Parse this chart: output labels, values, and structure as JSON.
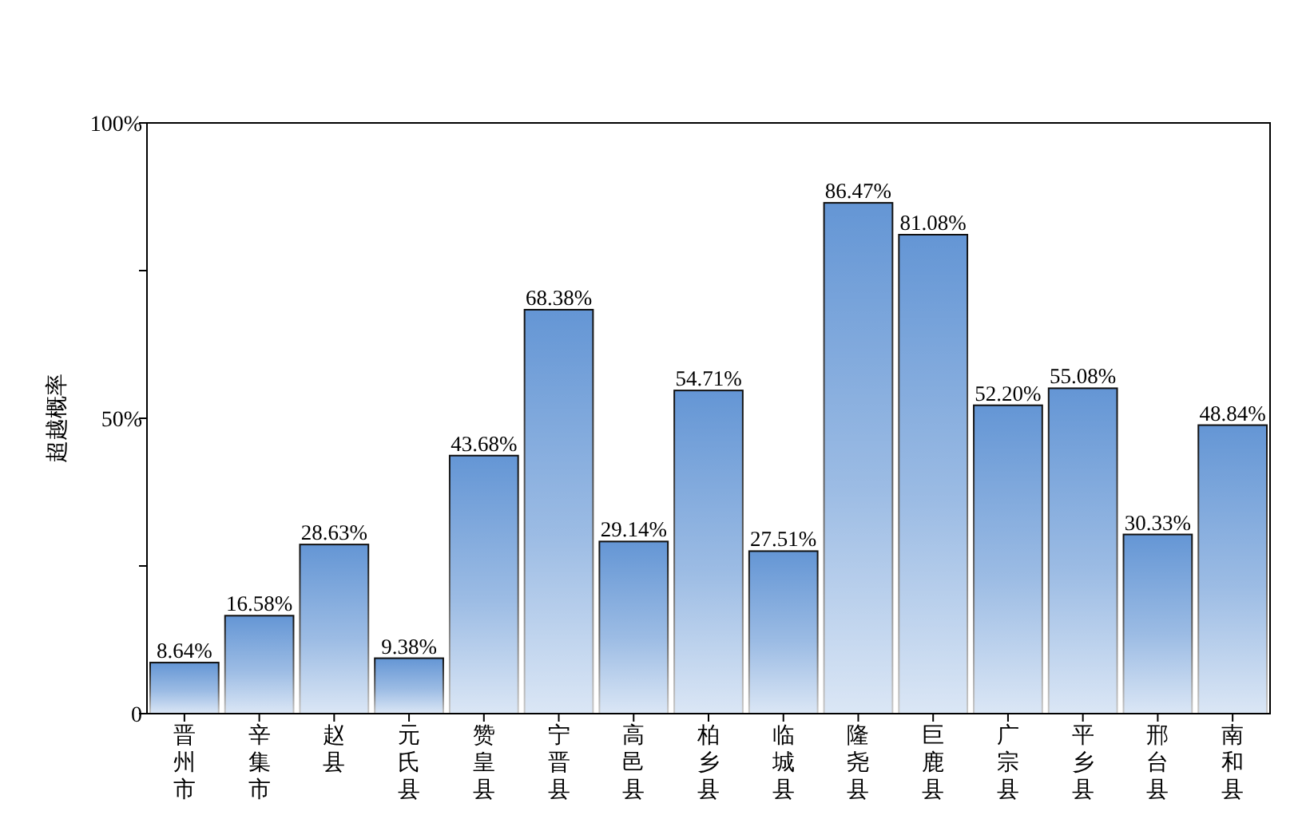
{
  "chart_data": {
    "type": "bar",
    "ylabel": "超越概率",
    "categories": [
      "晋州市",
      "辛集市",
      "赵县",
      "元氏县",
      "赞皇县",
      "宁晋县",
      "高邑县",
      "柏乡县",
      "临城县",
      "隆尧县",
      "巨鹿县",
      "广宗县",
      "平乡县",
      "邢台县",
      "南和县"
    ],
    "values": [
      8.64,
      16.58,
      28.63,
      9.38,
      43.68,
      68.38,
      29.14,
      54.71,
      27.51,
      86.47,
      81.08,
      52.2,
      55.08,
      30.33,
      48.84
    ],
    "value_labels": [
      "8.64%",
      "16.58%",
      "28.63%",
      "9.38%",
      "43.68%",
      "68.38%",
      "29.14%",
      "54.71%",
      "27.51%",
      "86.47%",
      "81.08%",
      "52.20%",
      "55.08%",
      "30.33%",
      "48.84%"
    ],
    "color": "#5a8fd2",
    "ylim": [
      0,
      100
    ],
    "yticks": [
      0,
      {
        "value": 25,
        "label": null
      },
      {
        "value": 50,
        "label": "50%"
      },
      {
        "value": 75,
        "label": null
      },
      {
        "value": 100,
        "label": "100%"
      }
    ],
    "grid": false
  }
}
